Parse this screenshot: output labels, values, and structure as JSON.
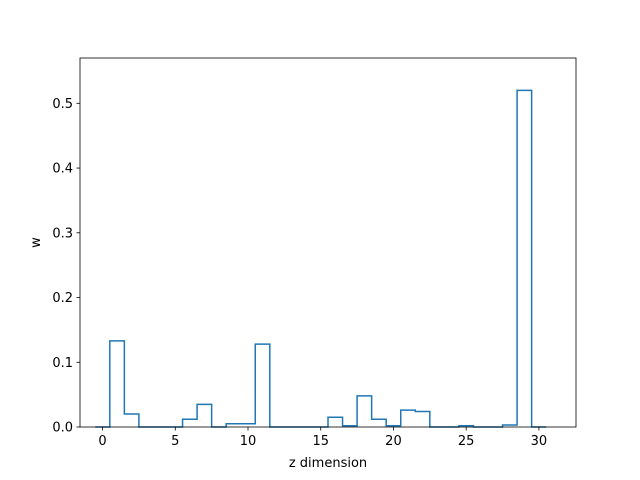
{
  "chart_data": {
    "type": "bar",
    "style": "step-histogram",
    "xlabel": "z dimension",
    "ylabel": "w",
    "xlim": [
      -1.55,
      32.55
    ],
    "ylim": [
      0,
      0.57
    ],
    "xticks": [
      0,
      5,
      10,
      15,
      20,
      25,
      30
    ],
    "yticks": [
      0.0,
      0.1,
      0.2,
      0.3,
      0.4,
      0.5
    ],
    "ytick_labels": [
      "0.0",
      "0.1",
      "0.2",
      "0.3",
      "0.4",
      "0.5"
    ],
    "bin_width": 1,
    "x": [
      0,
      1,
      2,
      3,
      4,
      5,
      6,
      7,
      8,
      9,
      10,
      11,
      12,
      13,
      14,
      15,
      16,
      17,
      18,
      19,
      20,
      21,
      22,
      23,
      24,
      25,
      26,
      27,
      28,
      29,
      30
    ],
    "values": [
      0.0,
      0.133,
      0.02,
      0.0,
      0.0,
      0.0,
      0.012,
      0.035,
      0.0,
      0.005,
      0.005,
      0.128,
      0.0,
      0.0,
      0.0,
      0.0,
      0.015,
      0.002,
      0.048,
      0.012,
      0.002,
      0.026,
      0.024,
      0.0,
      0.0,
      0.002,
      0.0,
      0.0,
      0.003,
      0.52,
      0.0
    ],
    "color": "#1f77b4",
    "grid": false,
    "legend": "none"
  }
}
